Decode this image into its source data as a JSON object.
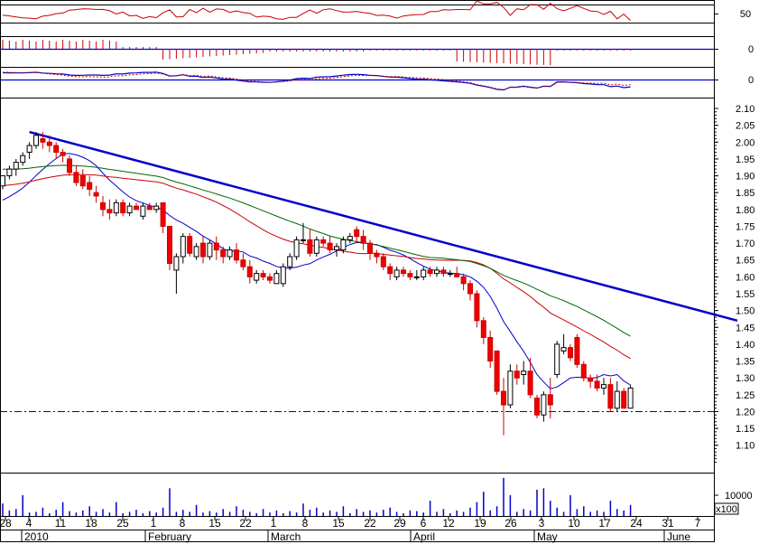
{
  "chart_data": {
    "type": "candlestick",
    "price_axis": {
      "ylim": [
        1.05,
        2.1
      ],
      "ticks": [
        "2.10",
        "2.05",
        "2.00",
        "1.95",
        "1.90",
        "1.85",
        "1.80",
        "1.75",
        "1.70",
        "1.65",
        "1.60",
        "1.55",
        "1.50",
        "1.45",
        "1.40",
        "1.35",
        "1.30",
        "1.25",
        "1.20",
        "1.15",
        "1.10"
      ]
    },
    "x_axis": {
      "day_ticks": [
        "28",
        "4",
        "11",
        "18",
        "25",
        "1",
        "8",
        "15",
        "22",
        "1",
        "8",
        "15",
        "22",
        "29",
        "6",
        "12",
        "19",
        "26",
        "3",
        "10",
        "17",
        "24",
        "31",
        "7"
      ],
      "period_labels": [
        "2010",
        "February",
        "March",
        "April",
        "May",
        "June"
      ]
    },
    "upper_panels": [
      {
        "name": "indicator-1",
        "tick_labels": [
          "50"
        ]
      },
      {
        "name": "indicator-2",
        "tick_labels": [
          "0"
        ]
      },
      {
        "name": "indicator-3",
        "tick_labels": [
          "0"
        ]
      }
    ],
    "volume_panel": {
      "tick_label": "10000",
      "multiplier_label": "x100"
    },
    "support_level": 1.2,
    "trendline": {
      "start": [
        4,
        2.03
      ],
      "end": [
        110,
        1.47
      ]
    },
    "candles": [
      [
        0,
        1.87,
        1.9,
        1.86,
        1.9
      ],
      [
        1,
        1.9,
        1.93,
        1.89,
        1.92
      ],
      [
        2,
        1.92,
        1.95,
        1.9,
        1.94
      ],
      [
        3,
        1.94,
        1.97,
        1.93,
        1.96
      ],
      [
        4,
        1.97,
        2.0,
        1.95,
        1.99
      ],
      [
        5,
        1.99,
        2.03,
        1.98,
        2.02
      ],
      [
        6,
        2.01,
        2.03,
        1.98,
        2.0
      ],
      [
        7,
        2.0,
        2.02,
        1.97,
        1.99
      ],
      [
        8,
        1.99,
        2.0,
        1.95,
        1.97
      ],
      [
        9,
        1.97,
        1.98,
        1.94,
        1.96
      ],
      [
        10,
        1.95,
        1.96,
        1.9,
        1.91
      ],
      [
        11,
        1.91,
        1.93,
        1.87,
        1.88
      ],
      [
        12,
        1.9,
        1.92,
        1.86,
        1.87
      ],
      [
        13,
        1.88,
        1.9,
        1.84,
        1.86
      ],
      [
        14,
        1.85,
        1.87,
        1.82,
        1.84
      ],
      [
        15,
        1.82,
        1.84,
        1.78,
        1.8
      ],
      [
        16,
        1.8,
        1.83,
        1.77,
        1.79
      ],
      [
        17,
        1.79,
        1.83,
        1.78,
        1.82
      ],
      [
        18,
        1.82,
        1.83,
        1.78,
        1.79
      ],
      [
        19,
        1.79,
        1.82,
        1.78,
        1.81
      ],
      [
        20,
        1.81,
        1.82,
        1.8,
        1.8
      ],
      [
        21,
        1.78,
        1.82,
        1.77,
        1.81
      ],
      [
        22,
        1.81,
        1.82,
        1.8,
        1.8
      ],
      [
        23,
        1.8,
        1.82,
        1.79,
        1.81
      ],
      [
        24,
        1.82,
        1.82,
        1.73,
        1.75
      ],
      [
        25,
        1.75,
        1.75,
        1.62,
        1.64
      ],
      [
        26,
        1.62,
        1.67,
        1.55,
        1.66
      ],
      [
        27,
        1.66,
        1.73,
        1.64,
        1.72
      ],
      [
        28,
        1.72,
        1.73,
        1.66,
        1.67
      ],
      [
        29,
        1.66,
        1.7,
        1.65,
        1.69
      ],
      [
        30,
        1.7,
        1.72,
        1.64,
        1.66
      ],
      [
        31,
        1.66,
        1.71,
        1.65,
        1.7
      ],
      [
        32,
        1.7,
        1.72,
        1.65,
        1.68
      ],
      [
        33,
        1.68,
        1.69,
        1.64,
        1.66
      ],
      [
        34,
        1.66,
        1.69,
        1.65,
        1.68
      ],
      [
        35,
        1.68,
        1.7,
        1.64,
        1.65
      ],
      [
        36,
        1.65,
        1.67,
        1.62,
        1.63
      ],
      [
        37,
        1.63,
        1.65,
        1.58,
        1.6
      ],
      [
        38,
        1.59,
        1.62,
        1.58,
        1.61
      ],
      [
        39,
        1.61,
        1.62,
        1.59,
        1.6
      ],
      [
        40,
        1.6,
        1.61,
        1.58,
        1.59
      ],
      [
        41,
        1.58,
        1.62,
        1.58,
        1.61
      ],
      [
        42,
        1.58,
        1.64,
        1.57,
        1.63
      ],
      [
        43,
        1.63,
        1.67,
        1.62,
        1.66
      ],
      [
        44,
        1.66,
        1.72,
        1.65,
        1.71
      ],
      [
        45,
        1.71,
        1.76,
        1.7,
        1.71
      ],
      [
        46,
        1.71,
        1.74,
        1.66,
        1.67
      ],
      [
        47,
        1.67,
        1.72,
        1.66,
        1.71
      ],
      [
        48,
        1.71,
        1.72,
        1.69,
        1.7
      ],
      [
        49,
        1.7,
        1.72,
        1.67,
        1.68
      ],
      [
        50,
        1.68,
        1.7,
        1.66,
        1.69
      ],
      [
        51,
        1.68,
        1.72,
        1.67,
        1.71
      ],
      [
        52,
        1.71,
        1.73,
        1.7,
        1.72
      ],
      [
        53,
        1.74,
        1.75,
        1.7,
        1.72
      ],
      [
        54,
        1.72,
        1.74,
        1.68,
        1.7
      ],
      [
        55,
        1.7,
        1.71,
        1.65,
        1.67
      ],
      [
        56,
        1.67,
        1.68,
        1.64,
        1.66
      ],
      [
        57,
        1.66,
        1.67,
        1.62,
        1.63
      ],
      [
        58,
        1.63,
        1.64,
        1.59,
        1.61
      ],
      [
        59,
        1.6,
        1.63,
        1.59,
        1.62
      ],
      [
        60,
        1.62,
        1.63,
        1.6,
        1.61
      ],
      [
        61,
        1.61,
        1.62,
        1.59,
        1.6
      ],
      [
        62,
        1.6,
        1.62,
        1.59,
        1.6
      ],
      [
        63,
        1.6,
        1.63,
        1.59,
        1.62
      ],
      [
        64,
        1.62,
        1.63,
        1.6,
        1.61
      ],
      [
        65,
        1.61,
        1.63,
        1.6,
        1.62
      ],
      [
        66,
        1.62,
        1.63,
        1.6,
        1.61
      ],
      [
        67,
        1.61,
        1.62,
        1.6,
        1.61
      ],
      [
        68,
        1.61,
        1.63,
        1.6,
        1.6
      ],
      [
        69,
        1.6,
        1.61,
        1.56,
        1.58
      ],
      [
        70,
        1.58,
        1.59,
        1.53,
        1.55
      ],
      [
        71,
        1.55,
        1.56,
        1.45,
        1.47
      ],
      [
        72,
        1.47,
        1.48,
        1.4,
        1.42
      ],
      [
        73,
        1.42,
        1.44,
        1.33,
        1.35
      ],
      [
        74,
        1.38,
        1.38,
        1.25,
        1.26
      ],
      [
        75,
        1.26,
        1.3,
        1.13,
        1.22
      ],
      [
        76,
        1.22,
        1.34,
        1.21,
        1.32
      ],
      [
        77,
        1.32,
        1.34,
        1.28,
        1.3
      ],
      [
        78,
        1.31,
        1.35,
        1.28,
        1.32
      ],
      [
        79,
        1.32,
        1.36,
        1.24,
        1.25
      ],
      [
        80,
        1.24,
        1.25,
        1.18,
        1.19
      ],
      [
        81,
        1.19,
        1.26,
        1.17,
        1.25
      ],
      [
        82,
        1.25,
        1.3,
        1.18,
        1.22
      ],
      [
        83,
        1.31,
        1.41,
        1.3,
        1.4
      ],
      [
        84,
        1.38,
        1.43,
        1.37,
        1.39
      ],
      [
        85,
        1.39,
        1.4,
        1.35,
        1.36
      ],
      [
        86,
        1.42,
        1.43,
        1.33,
        1.34
      ],
      [
        87,
        1.34,
        1.35,
        1.29,
        1.3
      ],
      [
        88,
        1.3,
        1.31,
        1.27,
        1.29
      ],
      [
        89,
        1.29,
        1.31,
        1.26,
        1.27
      ],
      [
        90,
        1.27,
        1.3,
        1.25,
        1.28
      ],
      [
        91,
        1.28,
        1.3,
        1.2,
        1.21
      ],
      [
        92,
        1.21,
        1.29,
        1.2,
        1.26
      ],
      [
        93,
        1.26,
        1.27,
        1.21,
        1.21
      ],
      [
        94,
        1.21,
        1.28,
        1.21,
        1.27
      ]
    ],
    "volumes": [
      18,
      8,
      10,
      30,
      5,
      6,
      12,
      4,
      9,
      20,
      7,
      5,
      8,
      14,
      6,
      10,
      5,
      20,
      4,
      6,
      9,
      4,
      7,
      5,
      12,
      40,
      6,
      9,
      6,
      16,
      5,
      7,
      5,
      10,
      6,
      14,
      9,
      6,
      4,
      10,
      5,
      8,
      4,
      7,
      5,
      18,
      9,
      12,
      5,
      8,
      6,
      14,
      4,
      10,
      6,
      8,
      5,
      9,
      12,
      6,
      4,
      8,
      7,
      5,
      22,
      6,
      10,
      4,
      8,
      6,
      12,
      20,
      35,
      8,
      14,
      55,
      30,
      6,
      10,
      8,
      38,
      40,
      22,
      12,
      6,
      30,
      10,
      14,
      6,
      8,
      6,
      22,
      10,
      8,
      16
    ]
  }
}
